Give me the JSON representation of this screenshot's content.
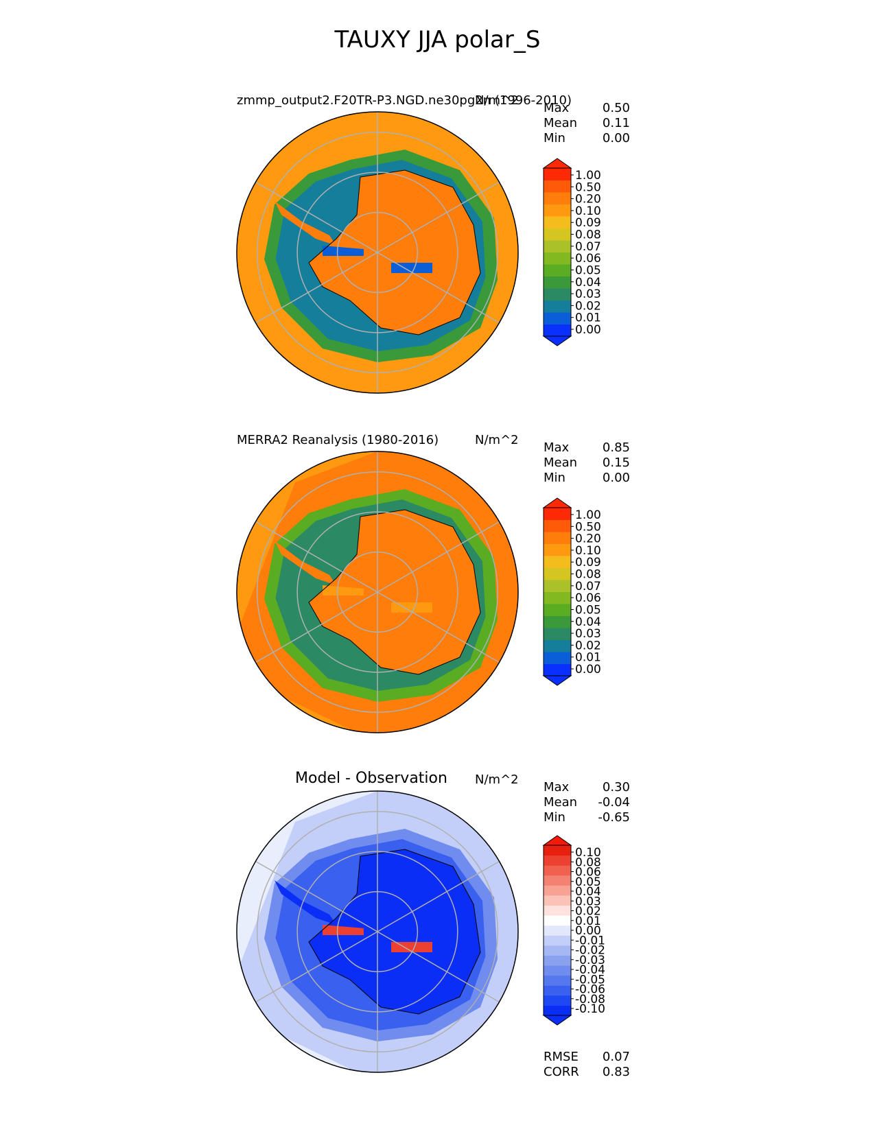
{
  "title": "TAUXY JJA polar_S",
  "panels": [
    {
      "title": "zmmp_output2.F20TR-P3.NGD.ne30pg2n (1996-2010)",
      "units": "N/m^2",
      "stats": [
        {
          "label": "Max",
          "value": "0.50"
        },
        {
          "label": "Mean",
          "value": "0.11"
        },
        {
          "label": "Min",
          "value": "0.00"
        }
      ],
      "colorbar": {
        "ticks": [
          "1.00",
          "0.50",
          "0.20",
          "0.10",
          "0.09",
          "0.08",
          "0.07",
          "0.06",
          "0.05",
          "0.04",
          "0.03",
          "0.02",
          "0.01",
          "0.00"
        ],
        "colors": [
          "#0a30ff",
          "#0a5fd8",
          "#157e9a",
          "#2b8a63",
          "#3a9a3a",
          "#5aad22",
          "#82b820",
          "#aac12a",
          "#d4c520",
          "#f5bc1e",
          "#ff9a10",
          "#ff7d0a",
          "#ff5a08",
          "#ff2a05"
        ],
        "over": "#ff2a05",
        "under": "#0a30ff"
      }
    },
    {
      "title": "MERRA2 Reanalysis (1980-2016)",
      "units": "N/m^2",
      "stats": [
        {
          "label": "Max",
          "value": "0.85"
        },
        {
          "label": "Mean",
          "value": "0.15"
        },
        {
          "label": "Min",
          "value": "0.00"
        }
      ],
      "colorbar": {
        "ticks": [
          "1.00",
          "0.50",
          "0.20",
          "0.10",
          "0.09",
          "0.08",
          "0.07",
          "0.06",
          "0.05",
          "0.04",
          "0.03",
          "0.02",
          "0.01",
          "0.00"
        ],
        "colors": [
          "#0a30ff",
          "#0a5fd8",
          "#157e9a",
          "#2b8a63",
          "#3a9a3a",
          "#5aad22",
          "#82b820",
          "#aac12a",
          "#d4c520",
          "#f5bc1e",
          "#ff9a10",
          "#ff7d0a",
          "#ff5a08",
          "#ff2a05"
        ],
        "over": "#ff2a05",
        "under": "#0a30ff"
      }
    },
    {
      "title": "Model - Observation",
      "units": "N/m^2",
      "stats": [
        {
          "label": "Max",
          "value": "0.30"
        },
        {
          "label": "Mean",
          "value": "-0.04"
        },
        {
          "label": "Min",
          "value": "-0.65"
        }
      ],
      "extra_stats": [
        {
          "label": "RMSE",
          "value": "0.07"
        },
        {
          "label": "CORR",
          "value": "0.83"
        }
      ],
      "colorbar": {
        "ticks": [
          "0.10",
          "0.08",
          "0.06",
          "0.05",
          "0.04",
          "0.03",
          "0.02",
          "0.01",
          "0.00",
          "-0.01",
          "-0.02",
          "-0.03",
          "-0.04",
          "-0.05",
          "-0.06",
          "-0.08",
          "-0.10"
        ],
        "colors": [
          "#0a2ef5",
          "#1f48f5",
          "#3a60f0",
          "#5578ee",
          "#6f8cee",
          "#8aa1f0",
          "#a6b8f4",
          "#c3cff8",
          "#e2e8fb",
          "#ffffff",
          "#fde2dd",
          "#fbc3b8",
          "#f8a294",
          "#f48272",
          "#f06150",
          "#ec4030",
          "#e82010"
        ],
        "over": "#f51a0a",
        "under": "#0a2ef5"
      }
    }
  ],
  "chart_data": [
    {
      "type": "heatmap",
      "projection": "south-polar-stereographic",
      "title": "zmmp_output2.F20TR-P3.NGD.ne30pg2n (1996-2010)",
      "variable": "TAUXY",
      "season": "JJA",
      "units": "N/m^2",
      "max": 0.5,
      "mean": 0.11,
      "min": 0.0,
      "levels": [
        0.0,
        0.01,
        0.02,
        0.03,
        0.04,
        0.05,
        0.06,
        0.07,
        0.08,
        0.09,
        0.1,
        0.2,
        0.5,
        1.0
      ]
    },
    {
      "type": "heatmap",
      "projection": "south-polar-stereographic",
      "title": "MERRA2 Reanalysis (1980-2016)",
      "variable": "TAUXY",
      "season": "JJA",
      "units": "N/m^2",
      "max": 0.85,
      "mean": 0.15,
      "min": 0.0,
      "levels": [
        0.0,
        0.01,
        0.02,
        0.03,
        0.04,
        0.05,
        0.06,
        0.07,
        0.08,
        0.09,
        0.1,
        0.2,
        0.5,
        1.0
      ]
    },
    {
      "type": "heatmap",
      "projection": "south-polar-stereographic",
      "title": "Model - Observation",
      "units": "N/m^2",
      "max": 0.3,
      "mean": -0.04,
      "min": -0.65,
      "rmse": 0.07,
      "corr": 0.83,
      "levels": [
        -0.1,
        -0.08,
        -0.06,
        -0.05,
        -0.04,
        -0.03,
        -0.02,
        -0.01,
        0.0,
        0.01,
        0.02,
        0.03,
        0.04,
        0.05,
        0.06,
        0.08,
        0.1
      ]
    }
  ]
}
